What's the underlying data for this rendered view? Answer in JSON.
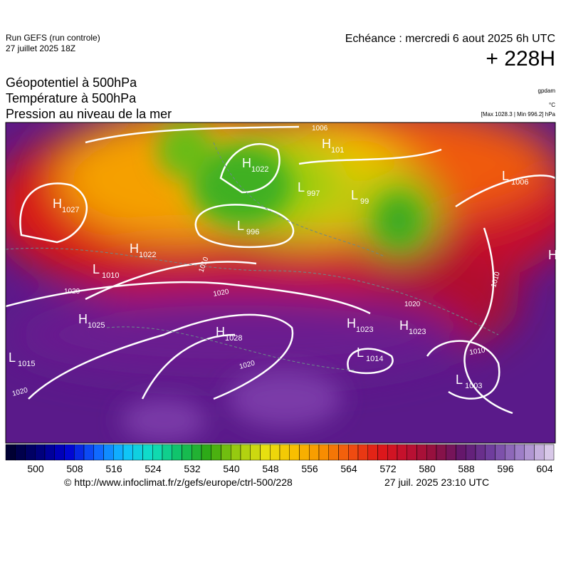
{
  "header": {
    "run": "Run GEFS (run controle)",
    "run_date": "27 juillet 2025 18Z",
    "echeance": "Echéance : mercredi 6 aout 2025 6h UTC",
    "lead": "+ 228H",
    "fields": [
      "Géopotentiel à 500hPa",
      "Température à 500hPa",
      "Pression au niveau de la mer"
    ],
    "units": [
      "gpdam",
      "°C",
      "[Max 1028.3 | Min 996.2] hPa"
    ]
  },
  "map": {
    "centers": [
      {
        "kind": "H",
        "value": "1027"
      },
      {
        "kind": "H",
        "value": "1022"
      },
      {
        "kind": "L",
        "value": "1010"
      },
      {
        "kind": "H",
        "value": "1022"
      },
      {
        "kind": "H",
        "value": "1025"
      },
      {
        "kind": "L",
        "value": "1015"
      },
      {
        "kind": "H",
        "value": "1028"
      },
      {
        "kind": "L",
        "value": "997"
      },
      {
        "kind": "L",
        "value": "996"
      },
      {
        "kind": "H",
        "value": "101"
      },
      {
        "kind": "L",
        "value": "99"
      },
      {
        "kind": "L",
        "value": "1006"
      },
      {
        "kind": "H",
        "value": "1023"
      },
      {
        "kind": "H",
        "value": "1023"
      },
      {
        "kind": "L",
        "value": "1014"
      },
      {
        "kind": "L",
        "value": "1003"
      },
      {
        "kind": "H"
      }
    ],
    "isobar_labels": [
      "1006",
      "1010",
      "1020",
      "1020",
      "1020",
      "1010",
      "1010",
      "1020",
      "1020"
    ]
  },
  "colorbar": {
    "ticks": [
      500,
      508,
      516,
      524,
      532,
      540,
      548,
      556,
      564,
      572,
      580,
      588,
      596,
      604
    ]
  },
  "footer": {
    "source": "© http://www.infoclimat.fr/z/gefs/europe/ctrl-500/228",
    "timestamp": "27 juil. 2025 23:10 UTC"
  }
}
